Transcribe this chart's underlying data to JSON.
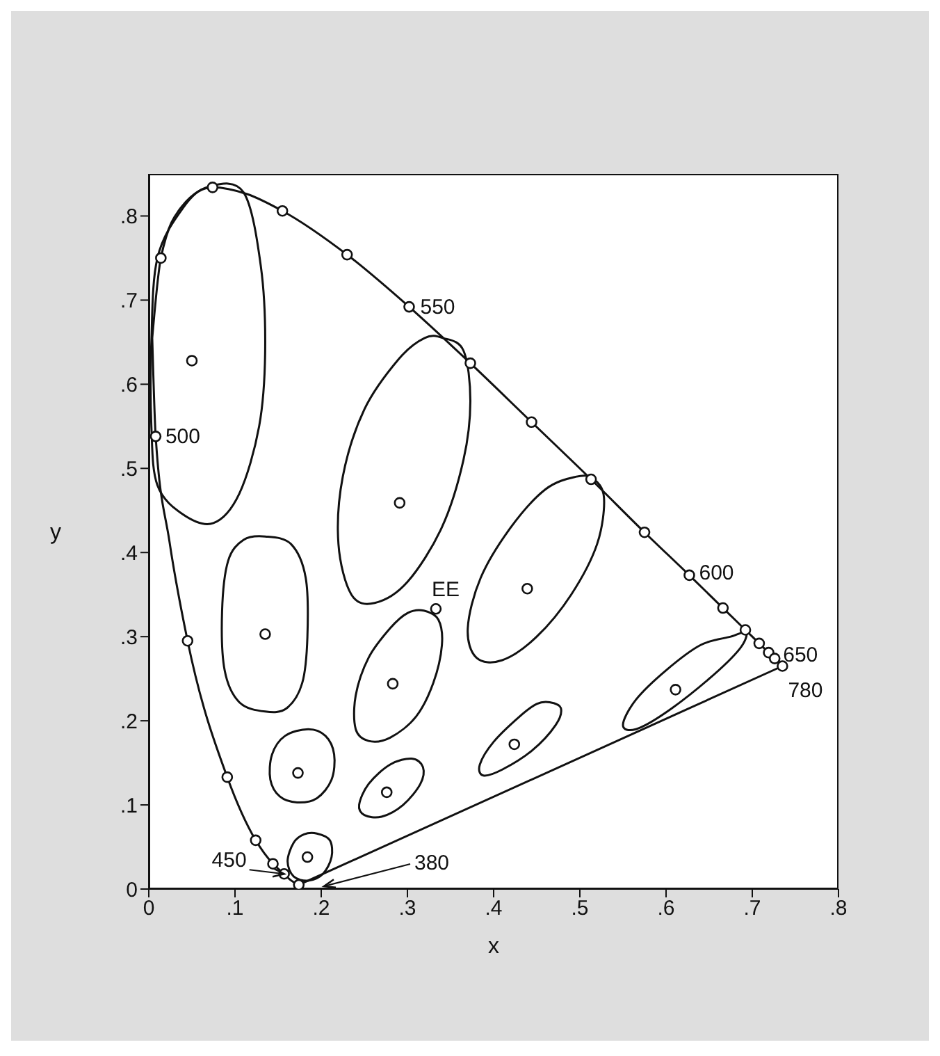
{
  "chart_data": {
    "type": "scatter",
    "xlabel": "x",
    "ylabel": "y",
    "xlim": [
      0,
      0.8
    ],
    "ylim": [
      0,
      0.85
    ],
    "xticks": [
      0,
      {
        "value": 0.1,
        "label": ".1"
      },
      {
        "value": 0.2,
        "label": ".2"
      },
      {
        "value": 0.3,
        "label": ".3"
      },
      {
        "value": 0.4,
        "label": ".4"
      },
      {
        "value": 0.5,
        "label": ".5"
      },
      {
        "value": 0.6,
        "label": ".6"
      },
      {
        "value": 0.7,
        "label": ".7"
      },
      {
        "value": 0.8,
        "label": ".8"
      }
    ],
    "yticks": [
      0,
      {
        "value": 0.1,
        "label": ".1"
      },
      {
        "value": 0.2,
        "label": ".2"
      },
      {
        "value": 0.3,
        "label": ".3"
      },
      {
        "value": 0.4,
        "label": ".4"
      },
      {
        "value": 0.5,
        "label": ".5"
      },
      {
        "value": 0.6,
        "label": ".6"
      },
      {
        "value": 0.7,
        "label": ".7"
      },
      {
        "value": 0.8,
        "label": ".8"
      }
    ],
    "grid": false,
    "legend": false,
    "line_style": "solid",
    "series": [
      {
        "type": "line",
        "color": "#111111",
        "marker": "none",
        "x": [
          0.004,
          0.008,
          0.024,
          0.045,
          0.091,
          0.124,
          0.144,
          0.157,
          0.164,
          0.174
        ],
        "values": [
          0.655,
          0.538,
          0.413,
          0.295,
          0.133,
          0.058,
          0.03,
          0.018,
          0.011,
          0.005
        ]
      },
      {
        "type": "line",
        "color": "#111111",
        "marker": "none",
        "x": [
          0.004,
          0.014,
          0.039,
          0.074,
          0.114,
          0.155,
          0.23,
          0.302,
          0.373,
          0.444,
          0.513,
          0.575,
          0.627,
          0.666,
          0.692,
          0.708,
          0.719,
          0.726,
          0.73,
          0.735
        ],
        "values": [
          0.655,
          0.75,
          0.812,
          0.834,
          0.826,
          0.806,
          0.754,
          0.692,
          0.625,
          0.555,
          0.487,
          0.424,
          0.373,
          0.334,
          0.308,
          0.292,
          0.281,
          0.274,
          0.27,
          0.265
        ]
      },
      {
        "type": "line",
        "color": "#111111",
        "marker": "none",
        "x": [
          0.174,
          0.735
        ],
        "values": [
          0.005,
          0.265
        ]
      },
      {
        "type": "scatter",
        "color": "#111111",
        "marker": "circle",
        "x": [
          0.174,
          0.157,
          0.144,
          0.124,
          0.091,
          0.045,
          0.008,
          0.014,
          0.074,
          0.155,
          0.23,
          0.302,
          0.373,
          0.444,
          0.513,
          0.575,
          0.627,
          0.666,
          0.692,
          0.708,
          0.719,
          0.726,
          0.735
        ],
        "values": [
          0.005,
          0.018,
          0.03,
          0.058,
          0.133,
          0.295,
          0.538,
          0.75,
          0.834,
          0.806,
          0.754,
          0.692,
          0.625,
          0.555,
          0.487,
          0.424,
          0.373,
          0.334,
          0.308,
          0.292,
          0.281,
          0.274,
          0.265
        ]
      },
      {
        "type": "scatter",
        "color": "#111111",
        "marker": "circle",
        "x": [
          0.05,
          0.291,
          0.135,
          0.439,
          0.283,
          0.173,
          0.276,
          0.184,
          0.424,
          0.611,
          0.333
        ],
        "values": [
          0.628,
          0.459,
          0.303,
          0.357,
          0.244,
          0.138,
          0.115,
          0.038,
          0.172,
          0.237,
          0.333
        ]
      }
    ],
    "annotations": [
      {
        "text": "500",
        "x": 0.008,
        "y": 0.538
      },
      {
        "text": "550",
        "x": 0.302,
        "y": 0.692
      },
      {
        "text": "600",
        "x": 0.627,
        "y": 0.373
      },
      {
        "text": "650",
        "x": 0.726,
        "y": 0.274
      },
      {
        "text": "780",
        "x": 0.735,
        "y": 0.265
      },
      {
        "text": "450",
        "x": 0.157,
        "y": 0.018
      },
      "380",
      {
        "text": "EE",
        "x": 0.333,
        "y": 0.333
      }
    ]
  }
}
